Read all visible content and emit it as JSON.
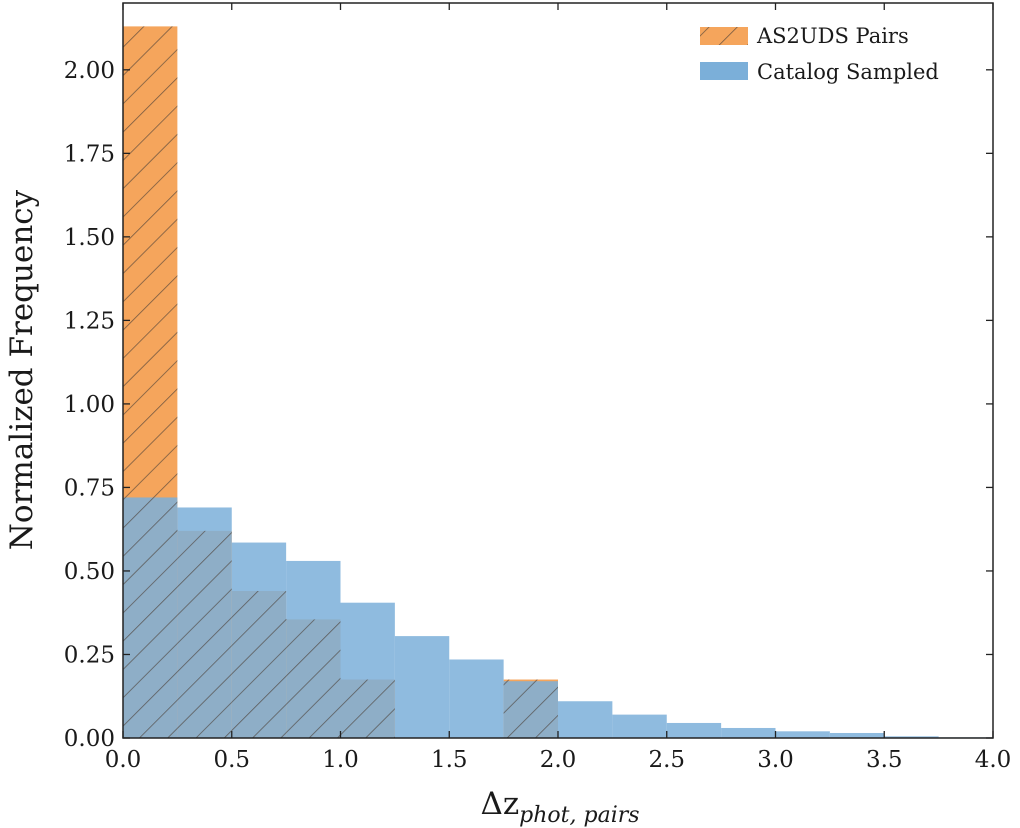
{
  "chart_data": {
    "type": "histogram",
    "xlabel_base": "Δz",
    "xlabel_sub": "phot, pairs",
    "ylabel": "Normalized Frequency",
    "xlim": [
      0.0,
      4.0
    ],
    "ylim": [
      0.0,
      2.2
    ],
    "xticks": [
      "0.0",
      "0.5",
      "1.0",
      "1.5",
      "2.0",
      "2.5",
      "3.0",
      "3.5",
      "4.0"
    ],
    "yticks": [
      "0.00",
      "0.25",
      "0.50",
      "0.75",
      "1.00",
      "1.25",
      "1.50",
      "1.75",
      "2.00"
    ],
    "bin_edges": [
      0.0,
      0.25,
      0.5,
      0.75,
      1.0,
      1.25,
      1.5,
      1.75,
      2.0,
      2.25,
      2.5,
      2.75,
      3.0,
      3.25,
      3.5,
      3.75,
      4.0
    ],
    "legend_position": "top-right",
    "grid": false,
    "series": [
      {
        "name": "AS2UDS Pairs",
        "color": "#f5a55c",
        "hatch": "//",
        "values": [
          2.13,
          0.62,
          0.44,
          0.355,
          0.175,
          0.0,
          0.0,
          0.175,
          0.0,
          0.0,
          0.0,
          0.0,
          0.0,
          0.0,
          0.0,
          0.0
        ]
      },
      {
        "name": "Catalog Sampled",
        "color": "#7bafd9",
        "values": [
          0.72,
          0.69,
          0.585,
          0.53,
          0.405,
          0.305,
          0.235,
          0.17,
          0.11,
          0.07,
          0.045,
          0.03,
          0.02,
          0.015,
          0.005,
          0.002
        ]
      }
    ]
  }
}
